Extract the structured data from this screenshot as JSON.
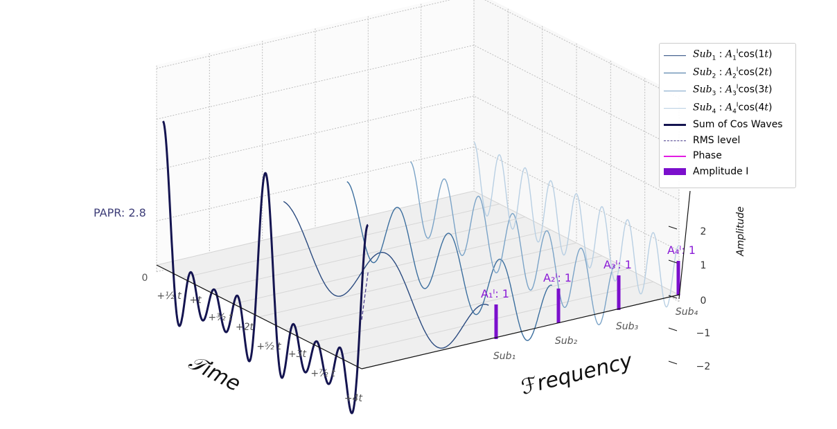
{
  "chart_data": {
    "type": "line",
    "projection": "3d",
    "xlabel": "𝒯ime",
    "ylabel": "ℱrequency",
    "zlabel": "Amplitude",
    "zlim": [
      -2,
      3
    ],
    "z_ticks": [
      "−2",
      "−1",
      "0",
      "1",
      "2"
    ],
    "time_ticks": [
      "0",
      "+½ t",
      "+t",
      "+³⁄₂ t",
      "+2t",
      "+⁵⁄₂ t",
      "+3t",
      "+⁷⁄₂ t",
      "+4t"
    ],
    "frequency_ticks": [
      "Sub₁",
      "Sub₂",
      "Sub₃",
      "Sub₄"
    ],
    "series": [
      {
        "name": "Sub₁ : A₁ᴵcos(1t)",
        "freq": 1,
        "amplitude": 1,
        "color": "#2a4a7f"
      },
      {
        "name": "Sub₂ : A₂ᴵcos(2t)",
        "freq": 2,
        "amplitude": 1,
        "color": "#3b6e9e"
      },
      {
        "name": "Sub₃ : A₃ᴵcos(3t)",
        "freq": 3,
        "amplitude": 1,
        "color": "#7aa3c7"
      },
      {
        "name": "Sub₄ : A₄ᴵcos(4t)",
        "freq": 4,
        "amplitude": 1,
        "color": "#b8cfe3"
      }
    ],
    "sum_series": {
      "name": "Sum of Cos Waves",
      "color": "#141450"
    },
    "rms": {
      "name": "RMS level",
      "color": "#4b3f8c",
      "annotation": "PAPR: 2.8"
    },
    "phase": {
      "name": "Phase",
      "color": "#e21be2"
    },
    "amplitude_bars": {
      "name": "Amplitude I",
      "color": "#7b0fcc",
      "labels": [
        "A₁ᴵ: 1",
        "A₂ᴵ: 1",
        "A₃ᴵ: 1",
        "A₄ᴵ: 1"
      ],
      "values": [
        1,
        1,
        1,
        1
      ]
    },
    "grid": true,
    "legend_position": "top-right"
  }
}
